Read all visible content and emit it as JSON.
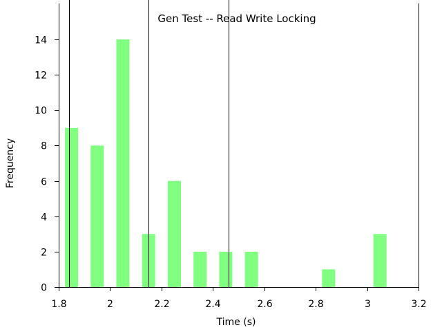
{
  "chart_data": {
    "type": "bar",
    "title": "Gen Test -- Read Write Locking",
    "xlabel": "Time (s)",
    "ylabel": "Frequency",
    "xlim": [
      1.8,
      3.2
    ],
    "ylim": [
      0,
      14
    ],
    "x_ticks": [
      "1.8",
      "2",
      "2.2",
      "2.4",
      "2.6",
      "2.8",
      "3",
      "3.2"
    ],
    "y_ticks": [
      "0",
      "2",
      "4",
      "6",
      "8",
      "10",
      "12",
      "14"
    ],
    "bin_width": 0.1,
    "bars": [
      {
        "x": 1.85,
        "value": 9
      },
      {
        "x": 1.95,
        "value": 8
      },
      {
        "x": 2.05,
        "value": 14
      },
      {
        "x": 2.15,
        "value": 3
      },
      {
        "x": 2.25,
        "value": 6
      },
      {
        "x": 2.35,
        "value": 2
      },
      {
        "x": 2.45,
        "value": 2
      },
      {
        "x": 2.55,
        "value": 2
      },
      {
        "x": 2.85,
        "value": 1
      },
      {
        "x": 3.05,
        "value": 3
      }
    ],
    "reference_lines_x": [
      1.84,
      2.15,
      2.46
    ],
    "bar_color": "#80ff80",
    "grid": false,
    "legend": "none"
  }
}
